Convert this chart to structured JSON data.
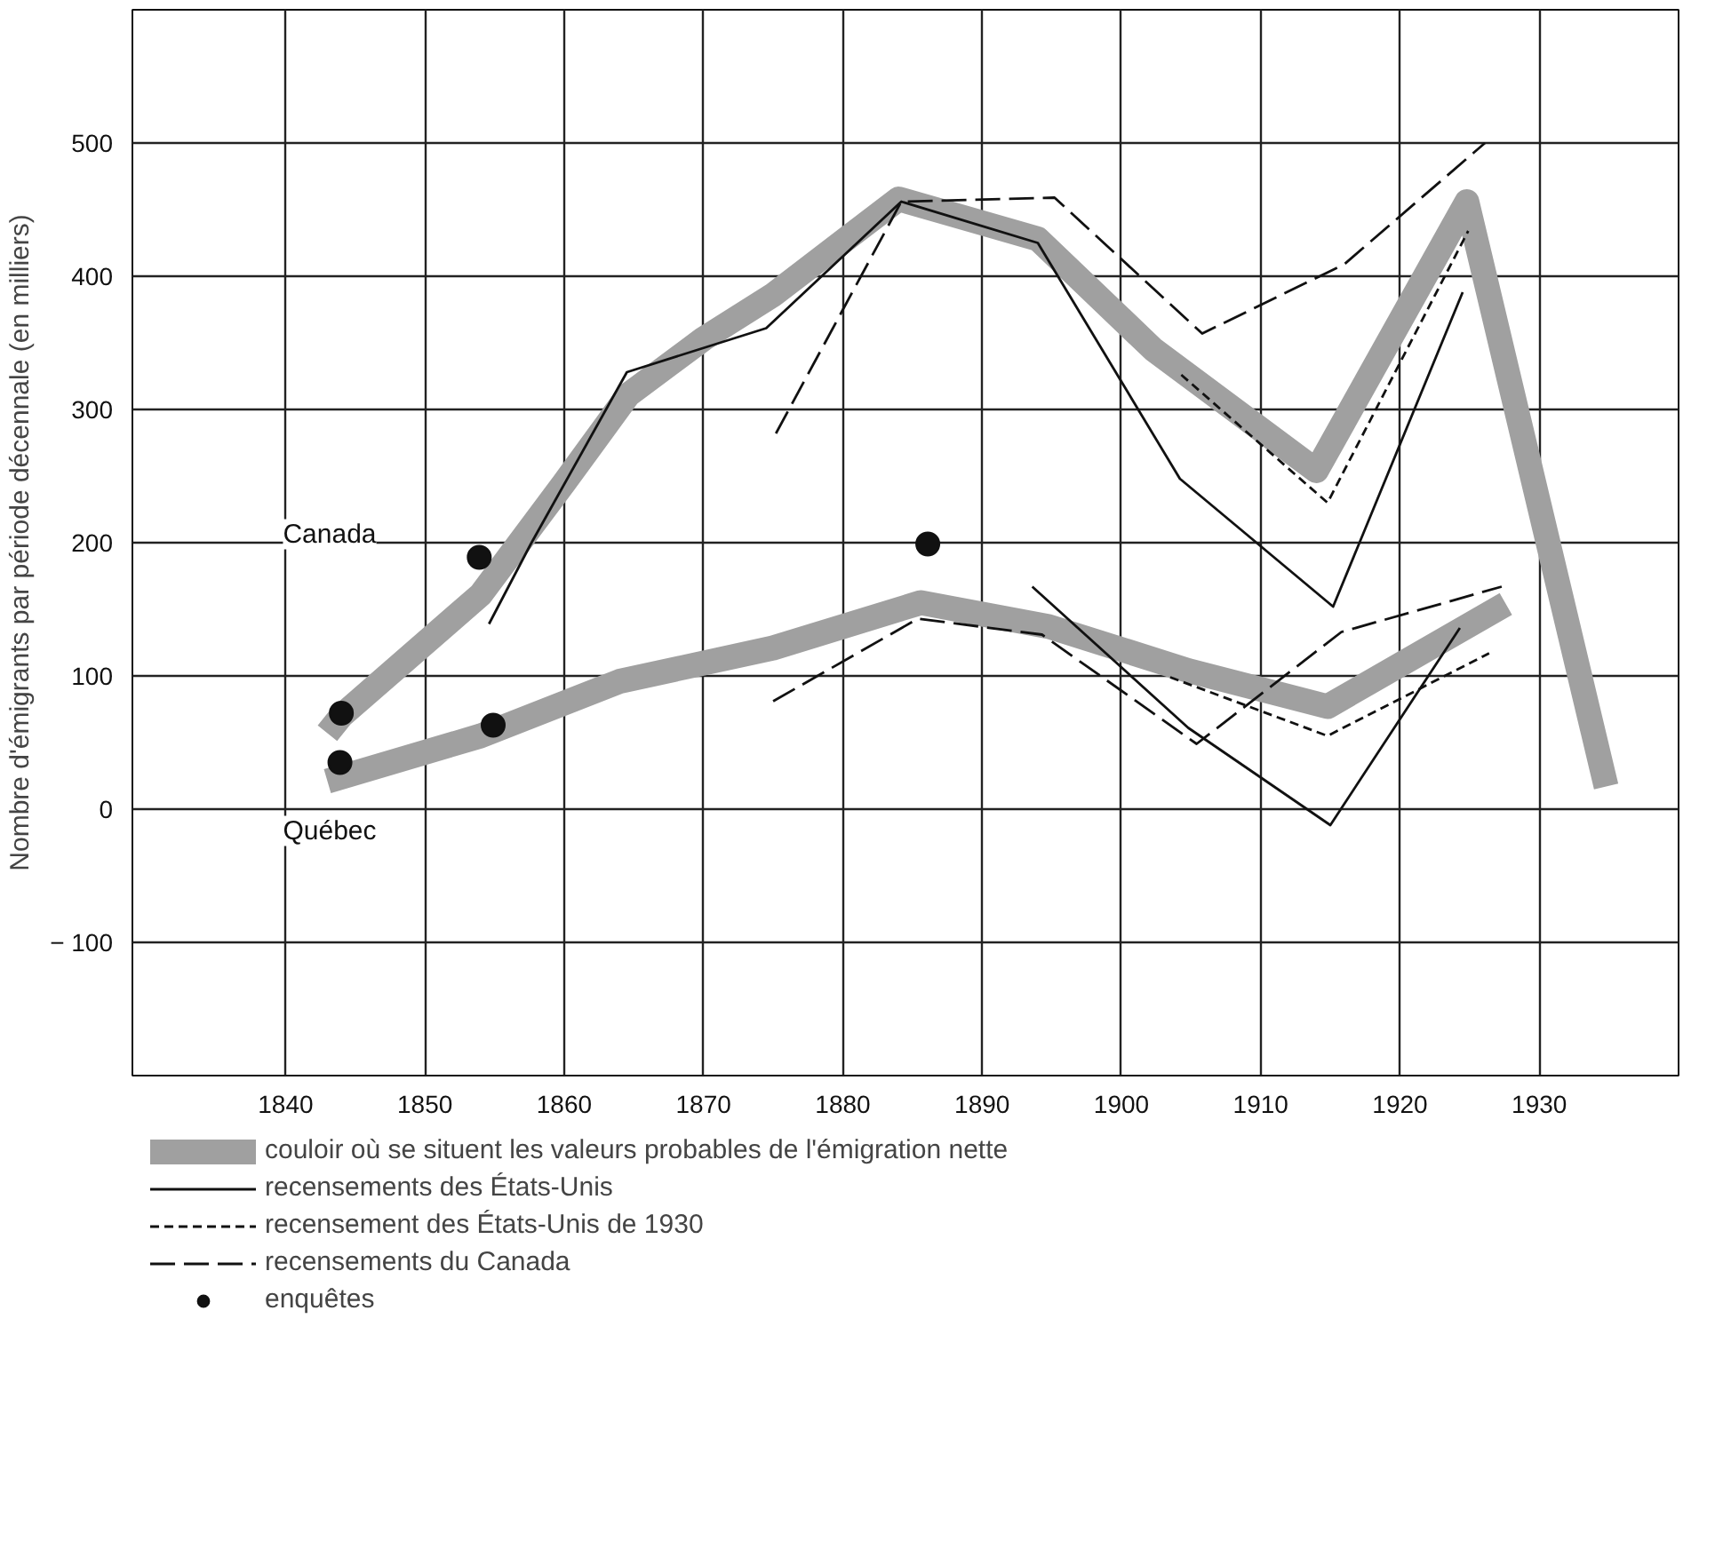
{
  "chart_data": {
    "type": "line",
    "ylabel": "Nombre d'émigrants par période décennale (en milliers)",
    "xlim": [
      1829,
      1940
    ],
    "ylim": [
      -200,
      600
    ],
    "xticks": [
      1840,
      1850,
      1860,
      1870,
      1880,
      1890,
      1900,
      1910,
      1920,
      1930
    ],
    "yticks": [
      {
        "value": -100,
        "label": "− 100"
      },
      0,
      100,
      200,
      300,
      400,
      500
    ],
    "grid": true,
    "legend": "bottom",
    "annotations": [
      "Canada",
      "Québec"
    ],
    "series": [
      {
        "name": "couloir où se situent les valeurs probables de l'émigration nette",
        "color": "#a0a0a0",
        "line_style": "solid",
        "x": [
          1843,
          1844,
          1854,
          1860,
          1864.6,
          1870,
          1875,
          1884,
          1894,
          1902.3,
          1914,
          1924.8,
          1934.8
        ],
        "values": [
          57,
          70,
          161,
          245,
          311,
          353,
          386,
          458,
          428,
          345,
          254,
          456,
          17
        ]
      },
      {
        "color": "#a0a0a0",
        "line_style": "solid",
        "x": [
          1843,
          1854,
          1864,
          1875,
          1885.6,
          1894.8,
          1904.8,
          1914.8,
          1927.6
        ],
        "values": [
          21,
          55,
          96,
          121,
          155,
          137,
          104,
          77,
          154
        ]
      },
      {
        "name": "recensements des États-Unis",
        "color": "#111111",
        "line_style": "solid",
        "x": [
          1854.6,
          1857.6,
          1864.5,
          1874.5,
          1884.2,
          1894,
          1904.2,
          1915.2,
          1924.5
        ],
        "values": [
          139,
          199,
          328,
          361,
          456,
          425,
          248,
          152,
          388
        ]
      },
      {
        "color": "#111111",
        "line_style": "solid",
        "x": [
          1893.6,
          1904.8,
          1915,
          1924.3
        ],
        "values": [
          167,
          61,
          -12,
          136
        ]
      },
      {
        "name": "recensement des États-Unis de 1930",
        "color": "#111111",
        "line_style": "dashed",
        "x": [
          1904.3,
          1914.8,
          1924.9
        ],
        "values": [
          326,
          230,
          434
        ]
      },
      {
        "color": "#111111",
        "line_style": "dashed",
        "x": [
          1903.5,
          1914.8,
          1926.4
        ],
        "values": [
          99,
          55,
          117
        ]
      },
      {
        "name": "recensements du Canada",
        "color": "#111111",
        "line_style": "longdash",
        "x": [
          1875.2,
          1884.2,
          1895.2,
          1905.8,
          1916,
          1926.1
        ],
        "values": [
          282,
          456,
          459,
          357,
          409,
          500
        ]
      },
      {
        "color": "#111111",
        "line_style": "longdash",
        "x": [
          1875,
          1885.4,
          1894.3,
          1905.4,
          1915.8,
          1927.3
        ],
        "values": [
          81,
          143,
          131,
          49,
          133,
          167
        ]
      },
      {
        "name": "enquêtes",
        "type": "scatter",
        "marker": "circle",
        "color": "#111111",
        "x": [
          1844,
          1843.9,
          1853.9,
          1854.9,
          1886.1
        ],
        "values": [
          72,
          35,
          189,
          63,
          199
        ]
      }
    ]
  }
}
